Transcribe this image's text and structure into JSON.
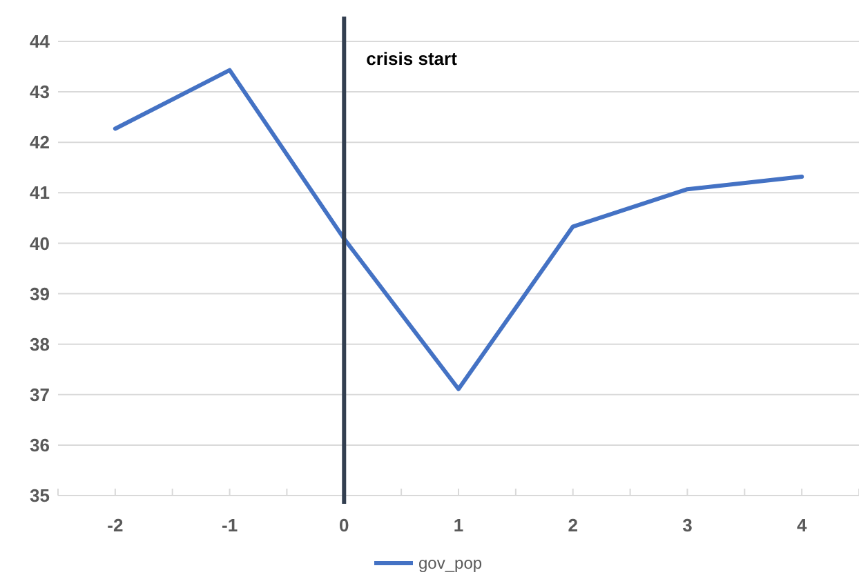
{
  "chart_data": {
    "type": "line",
    "x": [
      -2,
      -1,
      0,
      1,
      2,
      3,
      4
    ],
    "series": [
      {
        "name": "gov_pop",
        "color": "#4472c4",
        "values": [
          42.27,
          43.43,
          40.09,
          37.11,
          40.33,
          41.07,
          41.32
        ]
      }
    ],
    "xlim": [
      -2.5,
      4.5
    ],
    "xticks": [
      -2,
      -1,
      0,
      1,
      2,
      3,
      4,
      {
        "value": -2.5,
        "label": null
      },
      {
        "value": -1.5,
        "label": null
      },
      {
        "value": -0.5,
        "label": null
      },
      {
        "value": 0.5,
        "label": null
      },
      {
        "value": 1.5,
        "label": null
      },
      {
        "value": 2.5,
        "label": null
      },
      {
        "value": 3.5,
        "label": null
      },
      {
        "value": 4.5,
        "label": null
      }
    ],
    "ylim": [
      35,
      44
    ],
    "yticks": [
      35,
      36,
      37,
      38,
      39,
      40,
      41,
      42,
      43,
      44
    ],
    "grid": "y",
    "legend": "bottom",
    "marker": "none",
    "line_style": "solid",
    "ref_lines": [
      {
        "axis": "x",
        "value": 0,
        "label": "crisis start",
        "color": "#333f50"
      }
    ]
  }
}
